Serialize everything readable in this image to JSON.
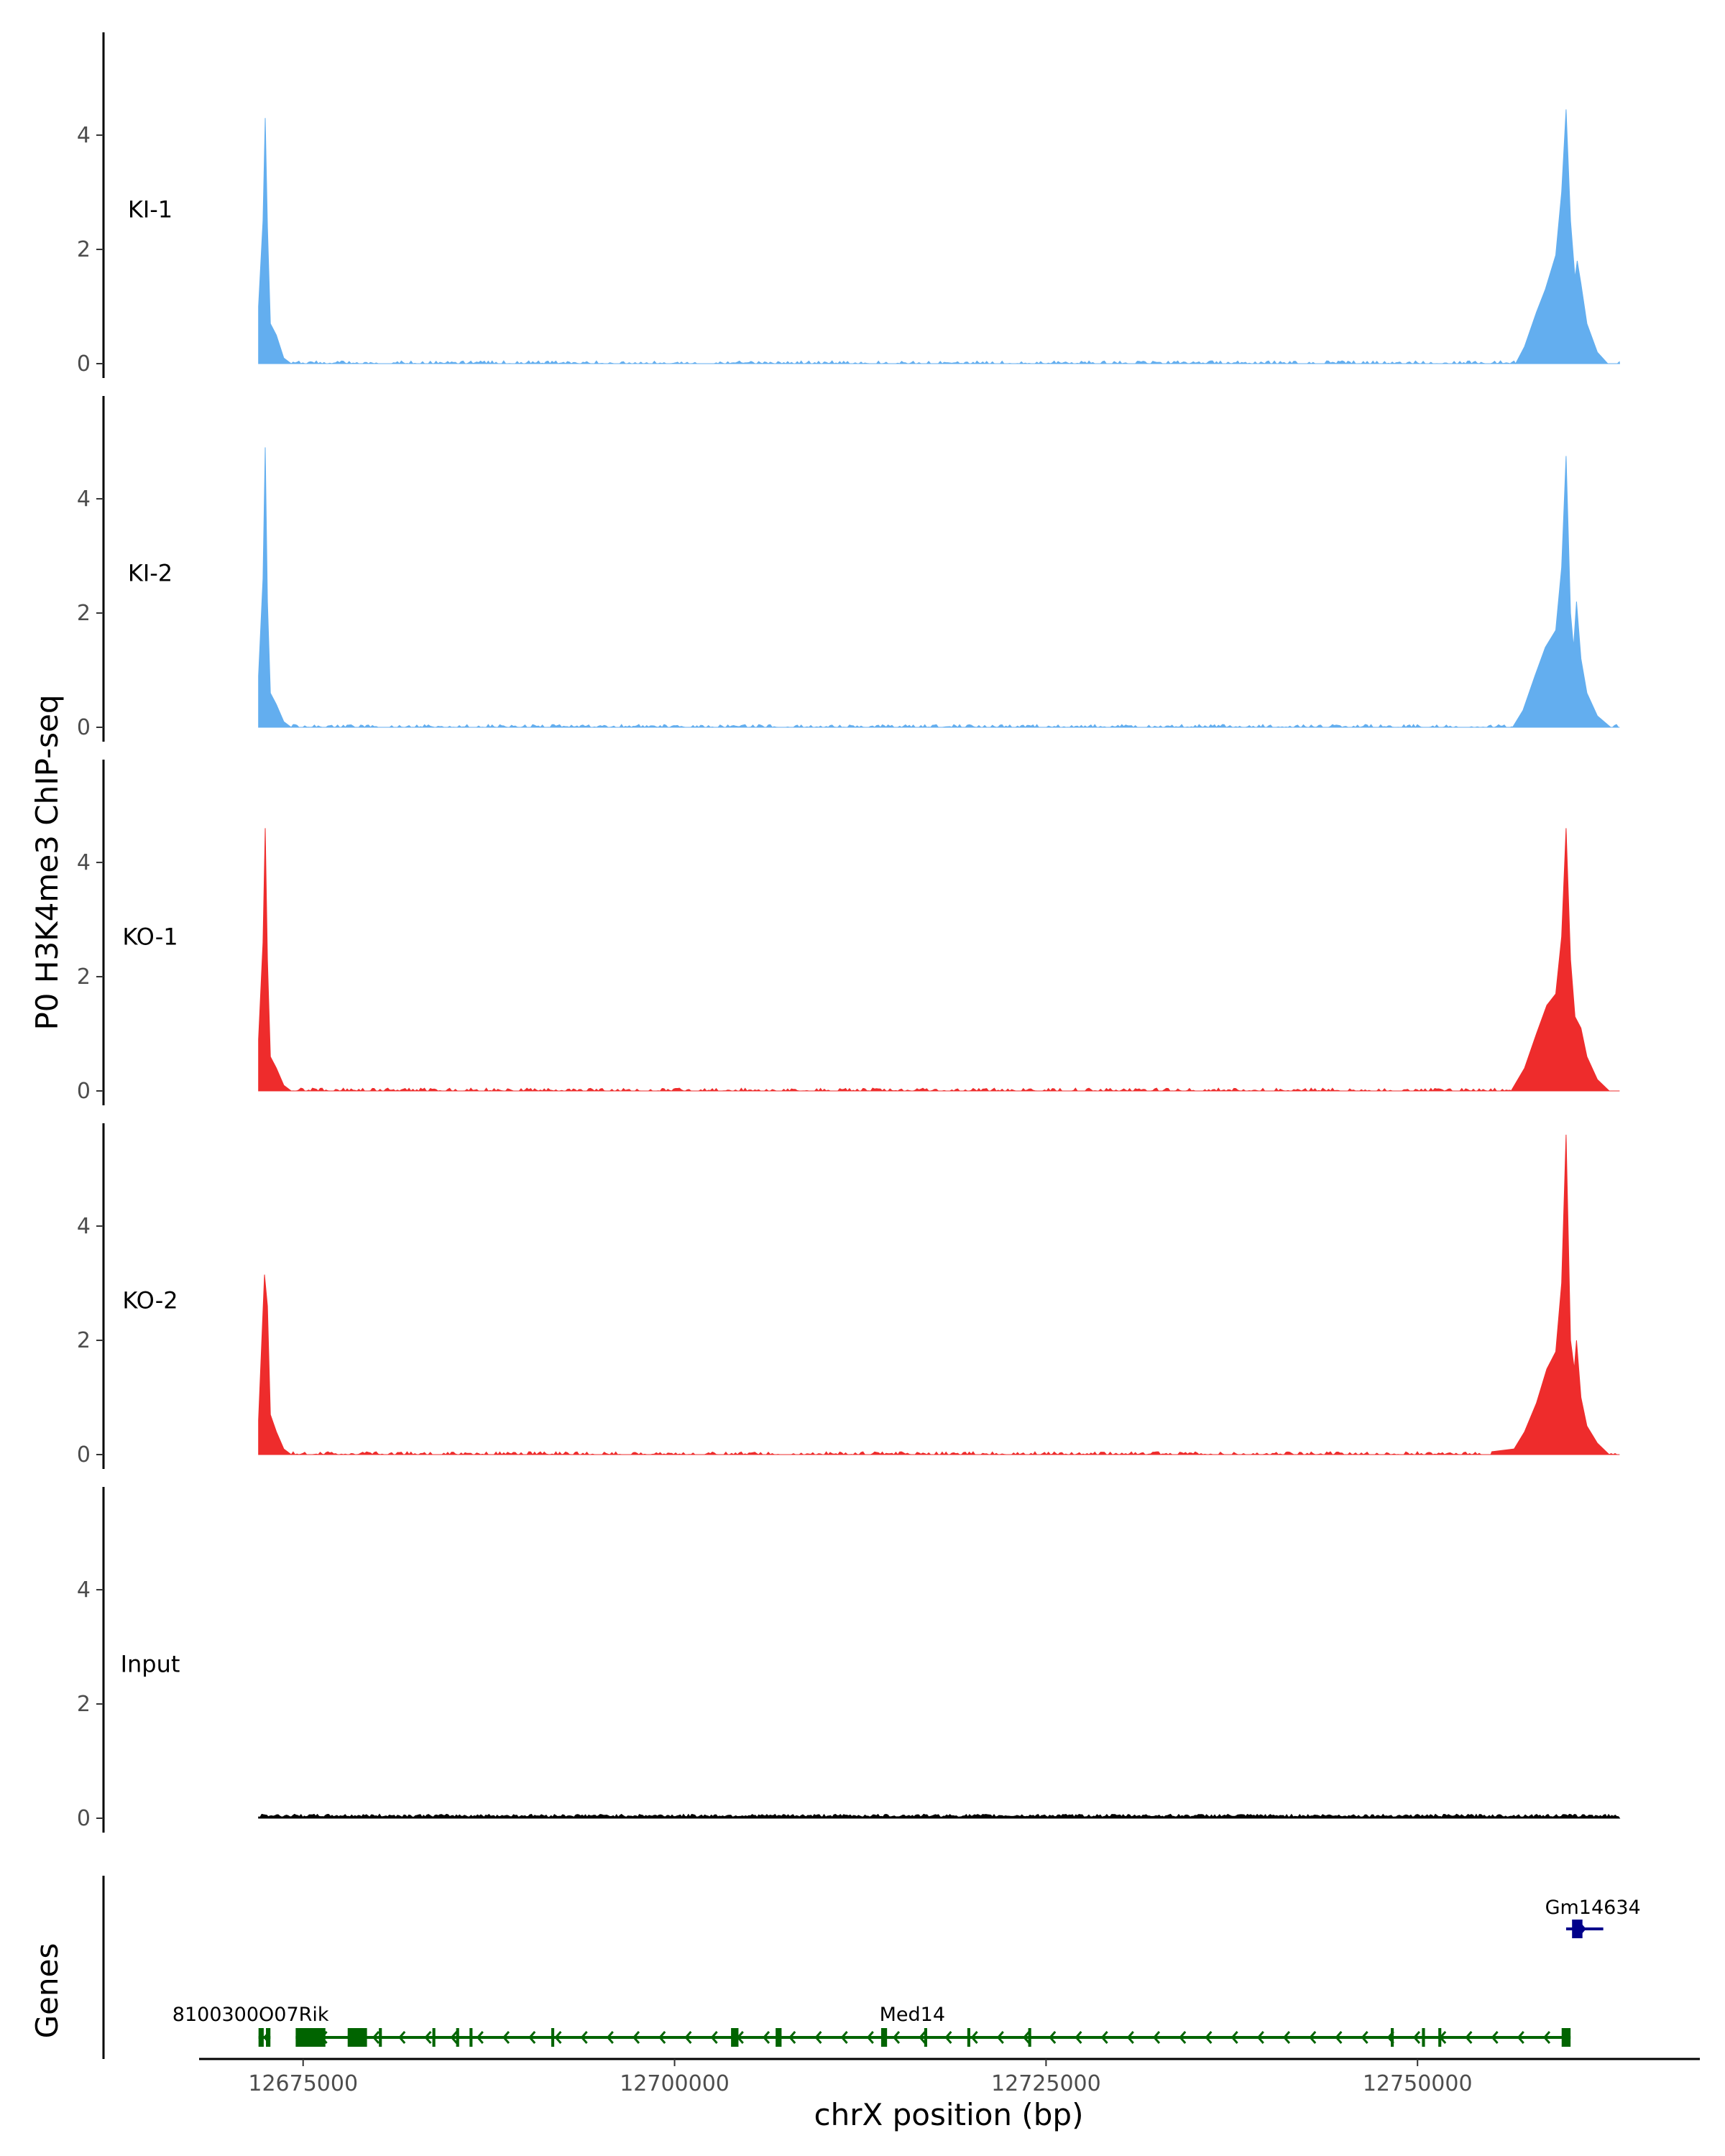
{
  "chart_data": {
    "type": "area",
    "title": "",
    "ylabel": "P0 H3K4me3 ChIP-seq",
    "xlabel": "chrX position (bp)",
    "ylim": [
      0,
      5.8
    ],
    "xlim": [
      12668000,
      12769000
    ],
    "y_ticks": [
      0,
      2,
      4
    ],
    "x_ticks": [
      12675000,
      12700000,
      12725000,
      12750000
    ],
    "x_tick_labels": [
      "12675000",
      "12700000",
      "12725000",
      "12750000"
    ],
    "data_start": 12672000,
    "data_end": 12763600,
    "colors": {
      "KI": "#63AEEF",
      "KO": "#EE2C2C",
      "Input": "#000000",
      "gene_green": "#006400",
      "gene_blue": "#00008B"
    },
    "tracks": [
      {
        "name": "KI-1",
        "color": "#63AEEF",
        "peaks": [
          {
            "x": 12672000,
            "y": 1.0
          },
          {
            "x": 12672300,
            "y": 2.5
          },
          {
            "x": 12672450,
            "y": 4.3
          },
          {
            "x": 12672600,
            "y": 2.4
          },
          {
            "x": 12672800,
            "y": 0.7
          },
          {
            "x": 12673200,
            "y": 0.5
          },
          {
            "x": 12673700,
            "y": 0.1
          },
          {
            "x": 12674200,
            "y": 0.0
          },
          {
            "x": 12756600,
            "y": 0.0
          },
          {
            "x": 12757200,
            "y": 0.3
          },
          {
            "x": 12758000,
            "y": 0.9
          },
          {
            "x": 12758600,
            "y": 1.3
          },
          {
            "x": 12759300,
            "y": 1.9
          },
          {
            "x": 12759700,
            "y": 3.0
          },
          {
            "x": 12760000,
            "y": 4.45
          },
          {
            "x": 12760300,
            "y": 2.5
          },
          {
            "x": 12760600,
            "y": 1.5
          },
          {
            "x": 12760750,
            "y": 1.8
          },
          {
            "x": 12761000,
            "y": 1.4
          },
          {
            "x": 12761400,
            "y": 0.7
          },
          {
            "x": 12762100,
            "y": 0.2
          },
          {
            "x": 12762800,
            "y": 0.0
          }
        ]
      },
      {
        "name": "KI-2",
        "color": "#63AEEF",
        "peaks": [
          {
            "x": 12672000,
            "y": 0.9
          },
          {
            "x": 12672300,
            "y": 2.6
          },
          {
            "x": 12672450,
            "y": 4.9
          },
          {
            "x": 12672600,
            "y": 2.2
          },
          {
            "x": 12672800,
            "y": 0.6
          },
          {
            "x": 12673200,
            "y": 0.4
          },
          {
            "x": 12673700,
            "y": 0.1
          },
          {
            "x": 12674200,
            "y": 0.0
          },
          {
            "x": 12756400,
            "y": 0.0
          },
          {
            "x": 12757100,
            "y": 0.3
          },
          {
            "x": 12757900,
            "y": 0.9
          },
          {
            "x": 12758600,
            "y": 1.4
          },
          {
            "x": 12759300,
            "y": 1.7
          },
          {
            "x": 12759700,
            "y": 2.8
          },
          {
            "x": 12760000,
            "y": 4.75
          },
          {
            "x": 12760300,
            "y": 2.0
          },
          {
            "x": 12760500,
            "y": 1.4
          },
          {
            "x": 12760700,
            "y": 2.2
          },
          {
            "x": 12761000,
            "y": 1.2
          },
          {
            "x": 12761400,
            "y": 0.6
          },
          {
            "x": 12762100,
            "y": 0.2
          },
          {
            "x": 12763000,
            "y": 0.0
          }
        ]
      },
      {
        "name": "KO-1",
        "color": "#EE2C2C",
        "peaks": [
          {
            "x": 12672000,
            "y": 0.9
          },
          {
            "x": 12672300,
            "y": 2.6
          },
          {
            "x": 12672450,
            "y": 4.6
          },
          {
            "x": 12672600,
            "y": 2.3
          },
          {
            "x": 12672800,
            "y": 0.6
          },
          {
            "x": 12673200,
            "y": 0.4
          },
          {
            "x": 12673700,
            "y": 0.1
          },
          {
            "x": 12674200,
            "y": 0.0
          },
          {
            "x": 12756300,
            "y": 0.0
          },
          {
            "x": 12757200,
            "y": 0.4
          },
          {
            "x": 12758000,
            "y": 1.0
          },
          {
            "x": 12758700,
            "y": 1.5
          },
          {
            "x": 12759300,
            "y": 1.7
          },
          {
            "x": 12759700,
            "y": 2.7
          },
          {
            "x": 12760000,
            "y": 4.6
          },
          {
            "x": 12760300,
            "y": 2.3
          },
          {
            "x": 12760600,
            "y": 1.3
          },
          {
            "x": 12761000,
            "y": 1.1
          },
          {
            "x": 12761400,
            "y": 0.6
          },
          {
            "x": 12762100,
            "y": 0.2
          },
          {
            "x": 12762900,
            "y": 0.0
          }
        ]
      },
      {
        "name": "KO-2",
        "color": "#EE2C2C",
        "peaks": [
          {
            "x": 12672000,
            "y": 0.6
          },
          {
            "x": 12672250,
            "y": 2.2
          },
          {
            "x": 12672400,
            "y": 3.15
          },
          {
            "x": 12672600,
            "y": 2.6
          },
          {
            "x": 12672800,
            "y": 0.7
          },
          {
            "x": 12673200,
            "y": 0.4
          },
          {
            "x": 12673700,
            "y": 0.1
          },
          {
            "x": 12674200,
            "y": 0.0
          },
          {
            "x": 12755000,
            "y": 0.05
          },
          {
            "x": 12756500,
            "y": 0.1
          },
          {
            "x": 12757200,
            "y": 0.4
          },
          {
            "x": 12758000,
            "y": 0.9
          },
          {
            "x": 12758700,
            "y": 1.5
          },
          {
            "x": 12759300,
            "y": 1.8
          },
          {
            "x": 12759700,
            "y": 3.0
          },
          {
            "x": 12760000,
            "y": 5.6
          },
          {
            "x": 12760300,
            "y": 2.0
          },
          {
            "x": 12760550,
            "y": 1.5
          },
          {
            "x": 12760700,
            "y": 2.0
          },
          {
            "x": 12761000,
            "y": 1.0
          },
          {
            "x": 12761400,
            "y": 0.5
          },
          {
            "x": 12762100,
            "y": 0.2
          },
          {
            "x": 12762900,
            "y": 0.0
          }
        ]
      },
      {
        "name": "Input",
        "color": "#000000",
        "peaks": [
          {
            "x": 12672000,
            "y": 0.03
          },
          {
            "x": 12763600,
            "y": 0.03
          }
        ]
      }
    ],
    "genes_track": {
      "label": "Genes",
      "genes": [
        {
          "name": "8100300O07Rik",
          "strand": "-",
          "color": "#006400",
          "start": 12672000,
          "end": 12672800,
          "label_x": 12666200,
          "exons": [
            [
              12672000,
              12672350
            ],
            [
              12672500,
              12672800
            ]
          ]
        },
        {
          "name": "Med14",
          "strand": "-",
          "color": "#006400",
          "start": 12674500,
          "end": 12760300,
          "label_x": 12716000,
          "exons": [
            [
              12674500,
              12676500
            ],
            [
              12678000,
              12679300
            ],
            [
              12680100,
              12680300
            ],
            [
              12683700,
              12683900
            ],
            [
              12685300,
              12685500
            ],
            [
              12686200,
              12686400
            ],
            [
              12691700,
              12691900
            ],
            [
              12703800,
              12704300
            ],
            [
              12706800,
              12707200
            ],
            [
              12713900,
              12714300
            ],
            [
              12716800,
              12717000
            ],
            [
              12719700,
              12719900
            ],
            [
              12723800,
              12724000
            ],
            [
              12748200,
              12748400
            ],
            [
              12750300,
              12750500
            ],
            [
              12751400,
              12751600
            ],
            [
              12759700,
              12760300
            ]
          ]
        },
        {
          "name": "Gm14634",
          "strand": "+",
          "color": "#00008B",
          "start": 12760000,
          "end": 12762500,
          "label_x": 12761800,
          "exons": [
            [
              12760400,
              12761100
            ]
          ]
        }
      ]
    }
  }
}
